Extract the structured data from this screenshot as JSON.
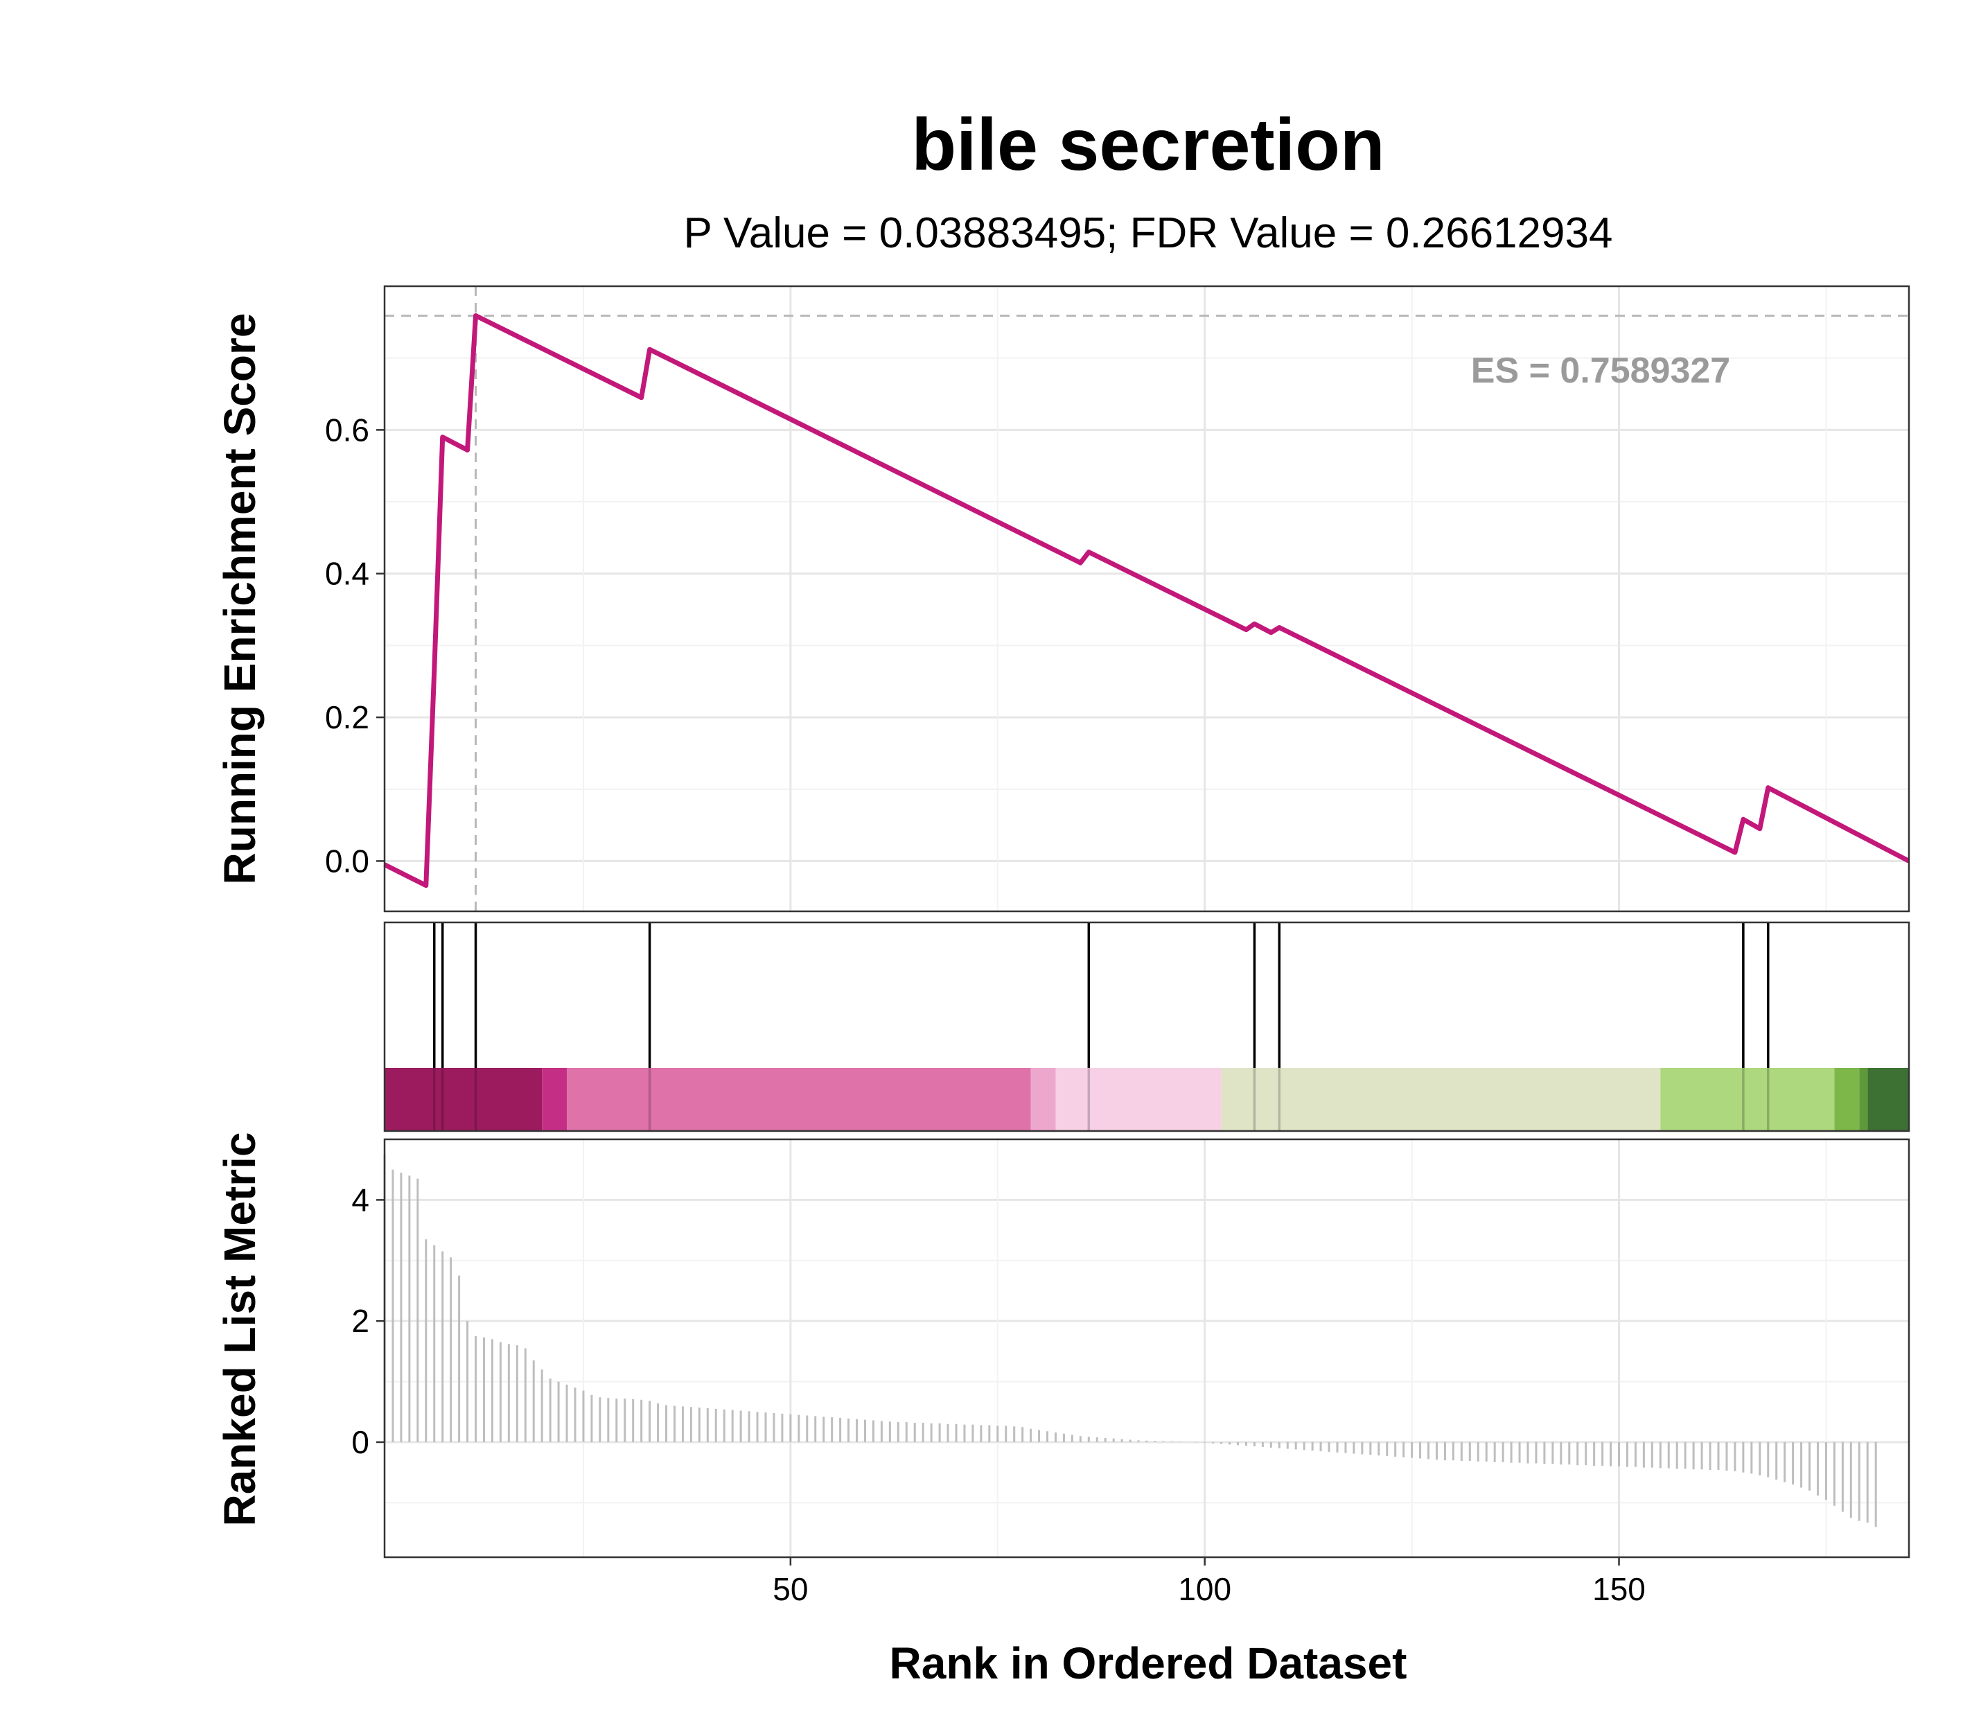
{
  "chart_data": {
    "type": "line",
    "title": "bile secretion",
    "subtitle": "P Value = 0.03883495; FDR Value = 0.26612934",
    "xlabel": "Rank in Ordered Dataset",
    "xlim": [
      1,
      185
    ],
    "x_ticks": [
      50,
      100,
      150
    ],
    "grid": true,
    "enrichment_panel": {
      "ylabel": "Running Enrichment Score",
      "ylim": [
        -0.07,
        0.8
      ],
      "y_ticks": [
        0.0,
        0.2,
        0.4,
        0.6
      ],
      "line_color": "#C2187A",
      "es_label": "ES = 0.7589327",
      "es_value": 0.7589327,
      "peak_rank": 12,
      "running_score": {
        "x": [
          1,
          6,
          7,
          8,
          11,
          12,
          32,
          33,
          85,
          86,
          105,
          106,
          108,
          109,
          164,
          165,
          167,
          168,
          185
        ],
        "y": [
          -0.005,
          -0.034,
          0.265,
          0.59,
          0.572,
          0.759,
          0.645,
          0.712,
          0.415,
          0.43,
          0.322,
          0.33,
          0.318,
          0.325,
          0.012,
          0.058,
          0.045,
          0.102,
          0.0
        ]
      }
    },
    "gene_hits": [
      7,
      8,
      12,
      33,
      86,
      106,
      109,
      165,
      168
    ],
    "color_bar": {
      "segments": [
        {
          "from": 1,
          "to": 20,
          "color": "#9C1B5F"
        },
        {
          "from": 20,
          "to": 23,
          "color": "#C42F85"
        },
        {
          "from": 23,
          "to": 79,
          "color": "#DE72A9"
        },
        {
          "from": 79,
          "to": 82,
          "color": "#EDA7CD"
        },
        {
          "from": 82,
          "to": 102,
          "color": "#F7D0E6"
        },
        {
          "from": 102,
          "to": 155,
          "color": "#E0E4C6"
        },
        {
          "from": 155,
          "to": 176,
          "color": "#ADD87E"
        },
        {
          "from": 176,
          "to": 179,
          "color": "#7DB74A"
        },
        {
          "from": 179,
          "to": 180,
          "color": "#5E9A3A"
        },
        {
          "from": 180,
          "to": 185,
          "color": "#3D7133"
        }
      ]
    },
    "ranked_panel": {
      "ylabel": "Ranked List Metric",
      "ylim": [
        -1.9,
        5.0
      ],
      "y_ticks": [
        0,
        2,
        4
      ],
      "bar_color": "#BEBEBE",
      "values": [
        4.75,
        4.5,
        4.45,
        4.4,
        4.35,
        3.35,
        3.25,
        3.15,
        3.05,
        2.75,
        2.0,
        1.75,
        1.73,
        1.7,
        1.65,
        1.62,
        1.6,
        1.55,
        1.35,
        1.2,
        1.05,
        1.0,
        0.95,
        0.9,
        0.85,
        0.78,
        0.74,
        0.73,
        0.72,
        0.72,
        0.71,
        0.7,
        0.68,
        0.64,
        0.61,
        0.6,
        0.59,
        0.58,
        0.57,
        0.56,
        0.55,
        0.54,
        0.53,
        0.52,
        0.51,
        0.5,
        0.49,
        0.48,
        0.47,
        0.46,
        0.45,
        0.44,
        0.43,
        0.42,
        0.41,
        0.4,
        0.39,
        0.38,
        0.37,
        0.36,
        0.35,
        0.34,
        0.33,
        0.33,
        0.32,
        0.32,
        0.31,
        0.31,
        0.3,
        0.3,
        0.29,
        0.29,
        0.28,
        0.28,
        0.27,
        0.27,
        0.26,
        0.25,
        0.22,
        0.2,
        0.18,
        0.16,
        0.14,
        0.12,
        0.1,
        0.09,
        0.08,
        0.07,
        0.06,
        0.05,
        0.04,
        0.03,
        0.025,
        0.02,
        0.015,
        0.01,
        0.005,
        0.0,
        -0.005,
        -0.01,
        -0.02,
        -0.03,
        -0.04,
        -0.05,
        -0.06,
        -0.07,
        -0.08,
        -0.09,
        -0.1,
        -0.11,
        -0.12,
        -0.13,
        -0.14,
        -0.15,
        -0.16,
        -0.17,
        -0.18,
        -0.19,
        -0.2,
        -0.21,
        -0.22,
        -0.23,
        -0.24,
        -0.25,
        -0.26,
        -0.27,
        -0.28,
        -0.29,
        -0.3,
        -0.3,
        -0.31,
        -0.31,
        -0.32,
        -0.32,
        -0.33,
        -0.33,
        -0.34,
        -0.34,
        -0.35,
        -0.35,
        -0.36,
        -0.36,
        -0.37,
        -0.37,
        -0.38,
        -0.38,
        -0.39,
        -0.39,
        -0.4,
        -0.4,
        -0.41,
        -0.41,
        -0.42,
        -0.42,
        -0.43,
        -0.43,
        -0.44,
        -0.44,
        -0.45,
        -0.45,
        -0.46,
        -0.46,
        -0.47,
        -0.48,
        -0.5,
        -0.52,
        -0.55,
        -0.58,
        -0.62,
        -0.66,
        -0.7,
        -0.75,
        -0.8,
        -0.88,
        -0.95,
        -1.05,
        -1.15,
        -1.25,
        -1.3,
        -1.33,
        -1.4
      ]
    }
  }
}
